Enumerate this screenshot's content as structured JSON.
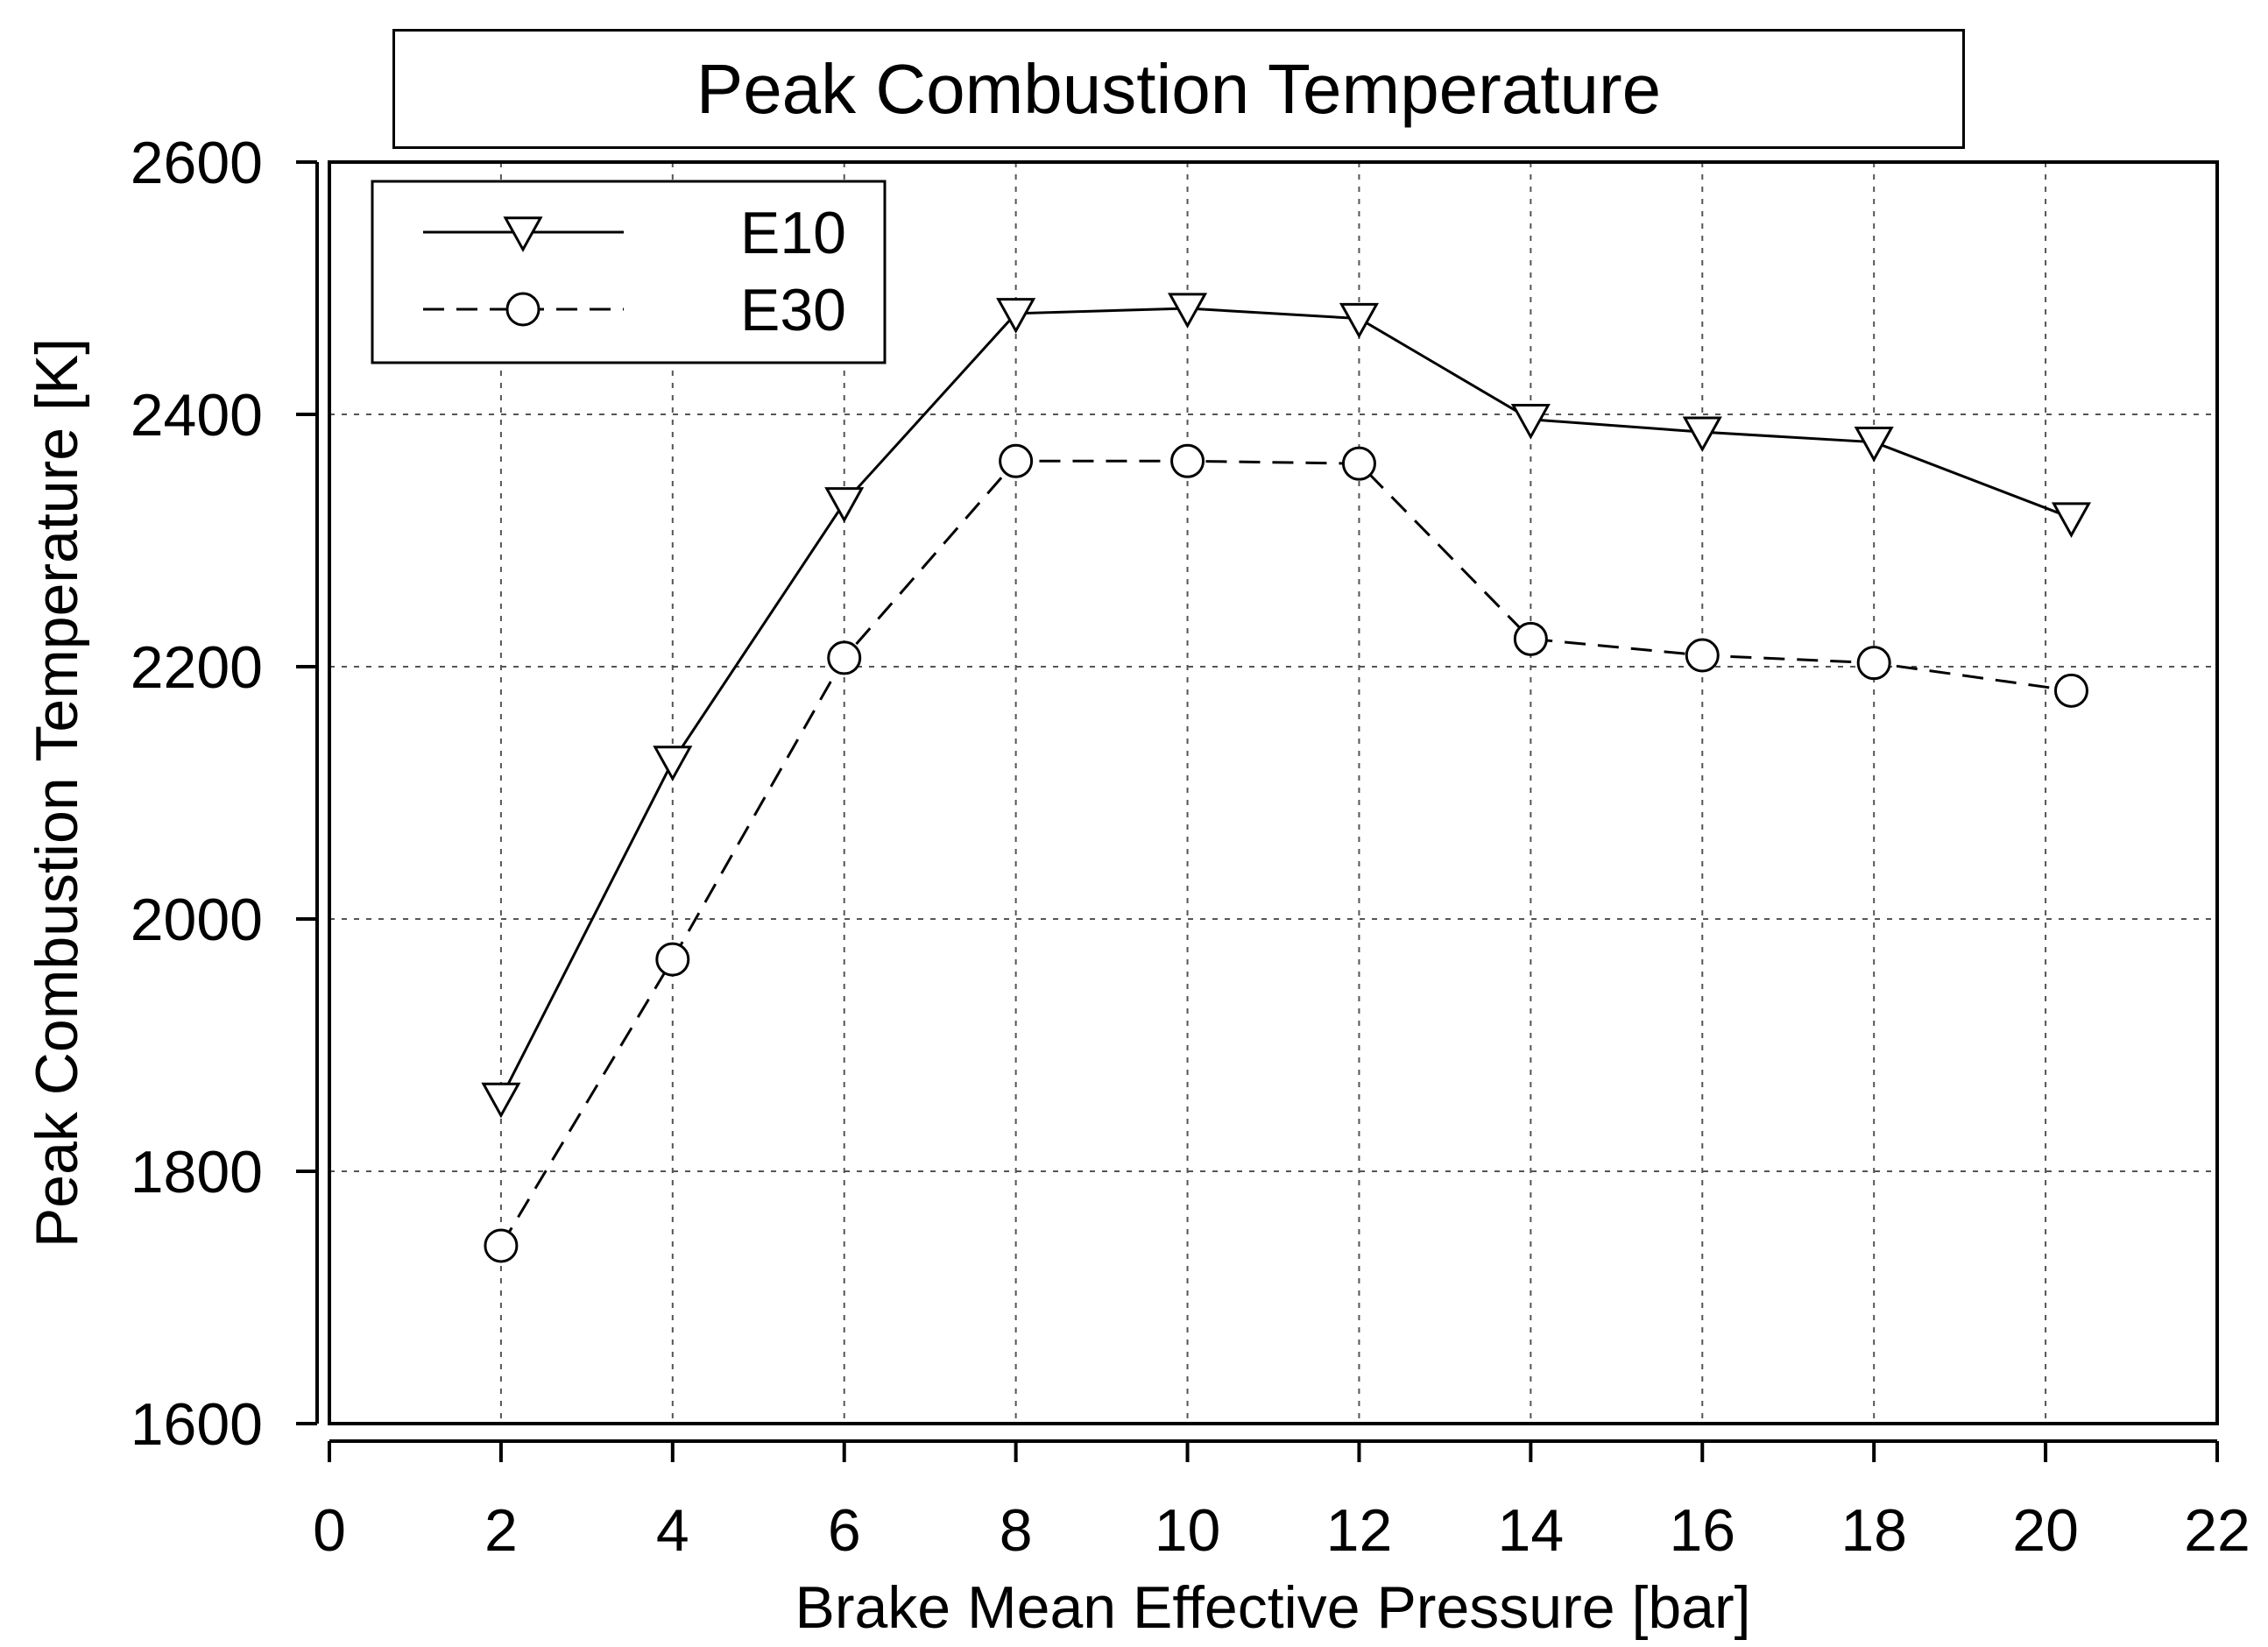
{
  "chart_data": {
    "type": "line",
    "title": "Peak Combustion Temperature",
    "xlabel": "Brake Mean Effective Pressure [bar]",
    "ylabel": "Peak Combustion Temperature [K]",
    "xlim": [
      0,
      22
    ],
    "ylim": [
      1600,
      2600
    ],
    "xticks": [
      0,
      2,
      4,
      6,
      8,
      10,
      12,
      14,
      16,
      18,
      20,
      22
    ],
    "yticks": [
      1600,
      1800,
      2000,
      2200,
      2400,
      2600
    ],
    "grid": true,
    "legend_position": "top-left",
    "series": [
      {
        "name": "E10",
        "line_style": "solid",
        "marker": "triangle-down",
        "x": [
          2,
          4,
          6,
          8,
          10,
          12,
          14,
          16,
          18,
          20.3
        ],
        "y": [
          1858,
          2125,
          2330,
          2480,
          2484,
          2476,
          2396,
          2386,
          2378,
          2318
        ]
      },
      {
        "name": "E30",
        "line_style": "dashed",
        "marker": "circle",
        "x": [
          2,
          4,
          6,
          8,
          10,
          12,
          14,
          16,
          18,
          20.3
        ],
        "y": [
          1741,
          1968,
          2207,
          2363,
          2363,
          2361,
          2222,
          2209,
          2203,
          2181
        ]
      }
    ]
  }
}
